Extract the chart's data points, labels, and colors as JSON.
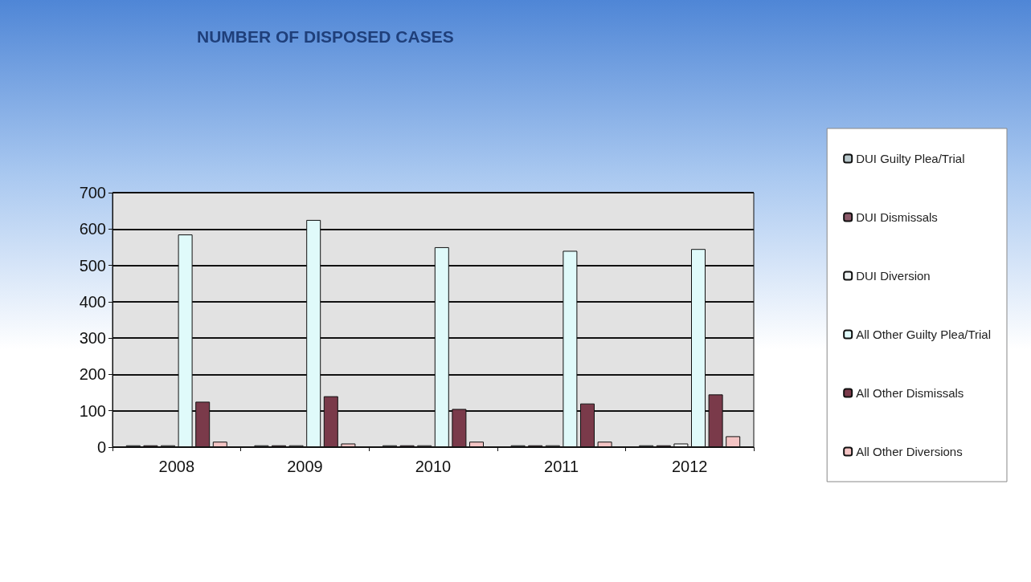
{
  "chart_data": {
    "type": "bar",
    "title": "NUMBER OF DISPOSED CASES",
    "categories": [
      "2008",
      "2009",
      "2010",
      "2011",
      "2012"
    ],
    "series": [
      {
        "name": "DUI Guilty Plea/Trial",
        "color": "#b8c8cc",
        "values": [
          5,
          5,
          5,
          5,
          5
        ]
      },
      {
        "name": "DUI Dismissals",
        "color": "#8c5a6a",
        "values": [
          5,
          5,
          5,
          5,
          5
        ]
      },
      {
        "name": "DUI Diversion",
        "color": "#eef2f2",
        "values": [
          5,
          5,
          5,
          5,
          10
        ]
      },
      {
        "name": "All Other Guilty Plea/Trial",
        "color": "#e0fafa",
        "values": [
          585,
          625,
          550,
          540,
          545
        ]
      },
      {
        "name": "All Other Dismissals",
        "color": "#7a3a4a",
        "values": [
          125,
          140,
          105,
          120,
          145
        ]
      },
      {
        "name": "All Other Diversions",
        "color": "#f4c4c4",
        "values": [
          15,
          10,
          15,
          15,
          30
        ]
      }
    ],
    "ylim": [
      0,
      700
    ],
    "yticks": [
      0,
      100,
      200,
      300,
      400,
      500,
      600,
      700
    ],
    "grid": "y",
    "legend": "right"
  }
}
